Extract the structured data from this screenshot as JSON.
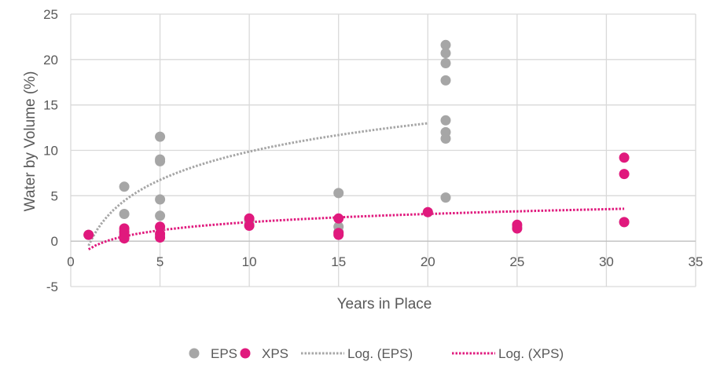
{
  "chart_data": {
    "type": "scatter",
    "title": "",
    "xlabel": "Years in Place",
    "ylabel": "Water by Volume (%)",
    "xlim": [
      0,
      35
    ],
    "ylim": [
      -5,
      25
    ],
    "x_ticks": [
      0,
      5,
      10,
      15,
      20,
      25,
      30,
      35
    ],
    "y_ticks": [
      -5,
      0,
      5,
      10,
      15,
      20,
      25
    ],
    "grid": true,
    "legend_position": "bottom",
    "series": [
      {
        "name": "EPS",
        "kind": "scatter",
        "color": "#A6A6A6",
        "points": [
          [
            1,
            0.7
          ],
          [
            3,
            6.0
          ],
          [
            3,
            3.0
          ],
          [
            3,
            1.2
          ],
          [
            3,
            0.8
          ],
          [
            3,
            0.4
          ],
          [
            5,
            11.5
          ],
          [
            5,
            9.0
          ],
          [
            5,
            8.8
          ],
          [
            5,
            4.6
          ],
          [
            5,
            2.8
          ],
          [
            5,
            1.5
          ],
          [
            5,
            0.6
          ],
          [
            10,
            2.3
          ],
          [
            10,
            1.8
          ],
          [
            15,
            5.3
          ],
          [
            15,
            1.6
          ],
          [
            15,
            1.0
          ],
          [
            20,
            3.2
          ],
          [
            21,
            21.6
          ],
          [
            21,
            20.7
          ],
          [
            21,
            19.6
          ],
          [
            21,
            17.7
          ],
          [
            21,
            13.3
          ],
          [
            21,
            12.0
          ],
          [
            21,
            11.3
          ],
          [
            21,
            4.8
          ],
          [
            25,
            1.6
          ],
          [
            31,
            2.1
          ]
        ]
      },
      {
        "name": "XPS",
        "kind": "scatter",
        "color": "#E0197D",
        "points": [
          [
            1,
            0.7
          ],
          [
            3,
            1.4
          ],
          [
            3,
            1.0
          ],
          [
            3,
            0.6
          ],
          [
            3,
            0.3
          ],
          [
            5,
            1.6
          ],
          [
            5,
            0.8
          ],
          [
            5,
            0.4
          ],
          [
            10,
            2.5
          ],
          [
            10,
            1.7
          ],
          [
            15,
            2.5
          ],
          [
            15,
            0.9
          ],
          [
            15,
            0.7
          ],
          [
            20,
            3.2
          ],
          [
            25,
            1.8
          ],
          [
            25,
            1.4
          ],
          [
            31,
            9.2
          ],
          [
            31,
            7.4
          ],
          [
            31,
            2.1
          ]
        ]
      },
      {
        "name": "Log. (EPS)",
        "kind": "trendline",
        "color": "#A6A6A6",
        "model": "logarithmic",
        "a": 4.5,
        "b": -0.5,
        "x_range": [
          1,
          20
        ]
      },
      {
        "name": "Log. (XPS)",
        "kind": "trendline",
        "color": "#E0197D",
        "model": "logarithmic",
        "a": 1.3,
        "b": -0.9,
        "x_range": [
          1,
          31
        ]
      }
    ]
  }
}
